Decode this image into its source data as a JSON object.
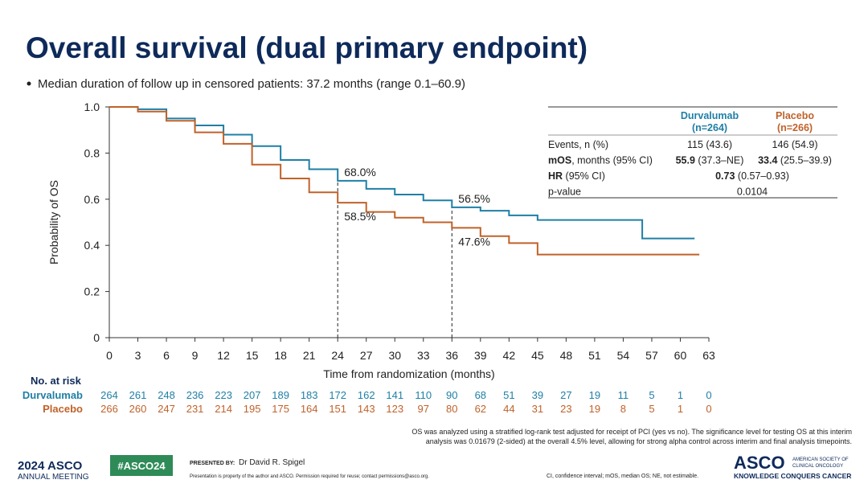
{
  "slide": {
    "title": "Overall survival (dual primary endpoint)",
    "bullet": "Median duration of follow up in censored patients: 37.2 months (range 0.1–60.9)"
  },
  "chart_data": {
    "type": "line",
    "step": true,
    "xlabel": "Time from randomization (months)",
    "ylabel": "Probability of OS",
    "xlim": [
      0,
      63
    ],
    "xticks": [
      0,
      3,
      6,
      9,
      12,
      15,
      18,
      21,
      24,
      27,
      30,
      33,
      36,
      39,
      42,
      45,
      48,
      51,
      54,
      57,
      60,
      63
    ],
    "ylim": [
      0,
      1
    ],
    "yticks": [
      0,
      0.2,
      0.4,
      0.6,
      0.8,
      {
        "value": 1,
        "label": "1.0"
      }
    ],
    "series": [
      {
        "name": "Durvalumab",
        "color": "#1f7fa6",
        "x": [
          0,
          3,
          6,
          9,
          12,
          15,
          18,
          21,
          24,
          27,
          30,
          33,
          36,
          39,
          42,
          45,
          56,
          61.5
        ],
        "values": [
          1,
          0.99,
          0.95,
          0.92,
          0.88,
          0.83,
          0.77,
          0.73,
          0.68,
          0.645,
          0.62,
          0.595,
          0.565,
          0.55,
          0.53,
          0.51,
          0.43,
          0.43
        ]
      },
      {
        "name": "Placebo",
        "color": "#c0622a",
        "x": [
          0,
          3,
          6,
          9,
          12,
          15,
          18,
          21,
          24,
          27,
          30,
          33,
          36,
          39,
          42,
          45,
          62
        ],
        "values": [
          1,
          0.98,
          0.94,
          0.89,
          0.84,
          0.75,
          0.69,
          0.63,
          0.585,
          0.545,
          0.52,
          0.5,
          0.476,
          0.44,
          0.41,
          0.36,
          0.36
        ]
      }
    ],
    "annotations": [
      {
        "text": "68.0%",
        "x": 24,
        "y": 0.68
      },
      {
        "text": "58.5%",
        "x": 24,
        "y": 0.585
      },
      {
        "text": "56.5%",
        "x": 36,
        "y": 0.565
      },
      {
        "text": "47.6%",
        "x": 36,
        "y": 0.476
      }
    ]
  },
  "risk_table": {
    "title": "No. at risk",
    "rows": [
      {
        "name": "Durvalumab",
        "counts": [
          "264",
          "261",
          "248",
          "236",
          "223",
          "207",
          "189",
          "183",
          "172",
          "162",
          "141",
          "110",
          "90",
          "68",
          "51",
          "39",
          "27",
          "19",
          "11",
          "5",
          "1",
          "0"
        ]
      },
      {
        "name": "Placebo",
        "counts": [
          "266",
          "260",
          "247",
          "231",
          "214",
          "195",
          "175",
          "164",
          "151",
          "143",
          "123",
          "97",
          "80",
          "62",
          "44",
          "31",
          "23",
          "19",
          "8",
          "5",
          "1",
          "0"
        ]
      }
    ]
  },
  "stats_table": {
    "headers": [
      {
        "line1": "Durvalumab",
        "line2": "(n=264)"
      },
      {
        "line1": "Placebo",
        "line2": "(n=266)"
      }
    ],
    "rows": [
      {
        "label": [
          {
            "text": "Events, n (%)",
            "bold": false
          }
        ],
        "cells": [
          [
            {
              "text": "115 (43.6)",
              "bold": false
            }
          ],
          [
            {
              "text": "146 (54.9)",
              "bold": false
            }
          ]
        ]
      },
      {
        "label": [
          {
            "text": "mOS",
            "bold": true
          },
          {
            "text": ", months (95% CI)",
            "bold": false
          }
        ],
        "cells": [
          [
            {
              "text": "55.9",
              "bold": true
            },
            {
              "text": " (37.3–NE)",
              "bold": false
            }
          ],
          [
            {
              "text": "33.4",
              "bold": true
            },
            {
              "text": " (25.5–39.9)",
              "bold": false
            }
          ]
        ]
      },
      {
        "label": [
          {
            "text": "HR",
            "bold": true
          },
          {
            "text": " (95% CI)",
            "bold": false
          }
        ],
        "cells": [
          [
            {
              "text": "0.73",
              "bold": true
            },
            {
              "text": " (0.57–0.93)",
              "bold": false
            }
          ]
        ]
      },
      {
        "label": [
          {
            "text": "p-value",
            "bold": false
          }
        ],
        "cells": [
          [
            {
              "text": "0.0104",
              "bold": false
            }
          ]
        ]
      }
    ]
  },
  "footnote": [
    "OS was analyzed using a stratified log-rank test adjusted for receipt of PCI (yes vs no). The significance level for testing OS at this interim",
    "analysis was 0.01679 (2-sided) at the overall 4.5% level, allowing for strong alpha control across interim and final analysis timepoints."
  ],
  "footer": {
    "meeting_year": "2024 ASCO",
    "meeting_name": "ANNUAL MEETING",
    "hashtag": "#ASCO24",
    "presented_by": "PRESENTED BY:",
    "presenter": "Dr David R. Spigel",
    "disclaimer": "Presentation is property of the author and ASCO. Permission required for reuse; contact permissions@asco.org.",
    "abbreviations": "CI, confidence interval; mOS, median OS; NE, not estimable.",
    "logo": "ASCO",
    "logo_line1": "AMERICAN SOCIETY OF",
    "logo_line2": "CLINICAL ONCOLOGY",
    "tagline": "KNOWLEDGE CONQUERS CANCER"
  }
}
